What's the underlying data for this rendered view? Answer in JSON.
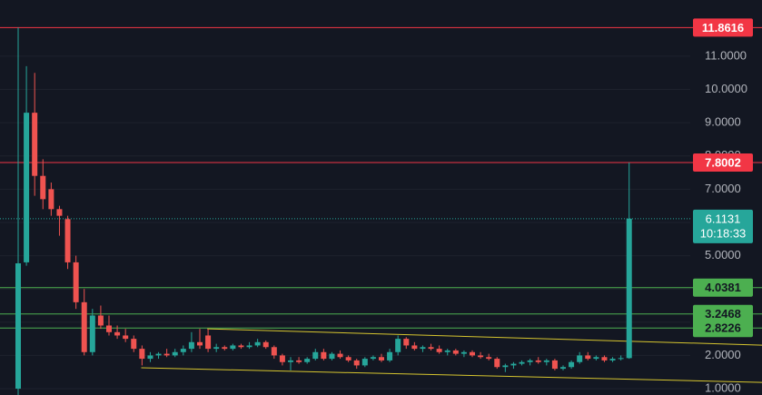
{
  "chart_data": {
    "type": "candlestick",
    "up_color": "#26a69a",
    "down_color": "#ef5350",
    "xlim": [
      -2.2,
      81.4
    ],
    "ylim": [
      0.81,
      12.69
    ],
    "yticks": [
      {
        "value": 1,
        "label": "1.0000"
      },
      {
        "value": 2,
        "label": "2.0000"
      },
      {
        "value": 3,
        "label": "3.0000"
      },
      {
        "value": 4,
        "label": "4.0000"
      },
      {
        "value": 5,
        "label": "5.0000"
      },
      {
        "value": 6,
        "label": "6.0000"
      },
      {
        "value": 7,
        "label": "7.0000"
      },
      {
        "value": 8,
        "label": "8.0000"
      },
      {
        "value": 9,
        "label": "9.0000"
      },
      {
        "value": 10,
        "label": "10.0000"
      },
      {
        "value": 11,
        "label": "11.0000"
      }
    ],
    "grid": true,
    "candles": [
      [
        1.0,
        11.8616,
        0.8,
        4.77
      ],
      [
        4.8,
        10.7,
        4.7,
        9.3
      ],
      [
        9.3,
        10.5,
        6.8,
        7.4
      ],
      [
        7.4,
        7.9,
        6.4,
        6.7
      ],
      [
        7.0,
        7.2,
        6.2,
        6.4
      ],
      [
        6.4,
        6.5,
        5.6,
        6.2
      ],
      [
        6.1,
        6.2,
        4.6,
        4.8
      ],
      [
        4.8,
        5.0,
        3.4,
        3.6
      ],
      [
        3.6,
        4.0,
        2.0,
        2.1
      ],
      [
        2.1,
        3.4,
        2.0,
        3.2
      ],
      [
        3.2,
        3.5,
        2.8,
        2.9
      ],
      [
        2.9,
        3.2,
        2.6,
        2.7
      ],
      [
        2.7,
        2.9,
        2.5,
        2.6
      ],
      [
        2.6,
        2.8,
        2.4,
        2.5
      ],
      [
        2.5,
        2.6,
        2.1,
        2.2
      ],
      [
        2.2,
        2.3,
        1.7,
        1.9
      ],
      [
        1.9,
        2.1,
        1.8,
        2.0
      ],
      [
        2.0,
        2.1,
        1.9,
        2.05
      ],
      [
        2.05,
        2.2,
        1.95,
        2.0
      ],
      [
        2.0,
        2.2,
        1.95,
        2.1
      ],
      [
        2.1,
        2.3,
        2.0,
        2.2
      ],
      [
        2.2,
        2.7,
        2.1,
        2.4
      ],
      [
        2.4,
        2.8,
        2.2,
        2.3
      ],
      [
        2.6,
        2.8,
        2.1,
        2.2
      ],
      [
        2.2,
        2.35,
        2.1,
        2.25
      ],
      [
        2.25,
        2.3,
        2.15,
        2.2
      ],
      [
        2.2,
        2.35,
        2.15,
        2.3
      ],
      [
        2.3,
        2.35,
        2.2,
        2.25
      ],
      [
        2.25,
        2.4,
        2.2,
        2.3
      ],
      [
        2.3,
        2.5,
        2.25,
        2.4
      ],
      [
        2.4,
        2.45,
        2.2,
        2.25
      ],
      [
        2.25,
        2.3,
        1.9,
        2.0
      ],
      [
        2.0,
        2.05,
        1.7,
        1.8
      ],
      [
        1.8,
        1.95,
        1.55,
        1.85
      ],
      [
        1.85,
        1.95,
        1.75,
        1.8
      ],
      [
        1.8,
        1.95,
        1.75,
        1.9
      ],
      [
        1.9,
        2.2,
        1.85,
        2.1
      ],
      [
        2.1,
        2.2,
        1.85,
        1.9
      ],
      [
        1.9,
        2.1,
        1.85,
        2.05
      ],
      [
        2.05,
        2.15,
        1.9,
        1.95
      ],
      [
        1.95,
        2.0,
        1.8,
        1.85
      ],
      [
        1.85,
        1.9,
        1.6,
        1.7
      ],
      [
        1.7,
        1.95,
        1.65,
        1.9
      ],
      [
        1.9,
        2.0,
        1.85,
        1.95
      ],
      [
        1.95,
        2.05,
        1.8,
        1.85
      ],
      [
        1.85,
        2.2,
        1.8,
        2.1
      ],
      [
        2.1,
        2.6,
        2.0,
        2.5
      ],
      [
        2.5,
        2.55,
        2.2,
        2.3
      ],
      [
        2.3,
        2.4,
        2.15,
        2.2
      ],
      [
        2.2,
        2.3,
        2.1,
        2.25
      ],
      [
        2.25,
        2.35,
        2.15,
        2.2
      ],
      [
        2.2,
        2.3,
        2.05,
        2.1
      ],
      [
        2.1,
        2.2,
        2.0,
        2.15
      ],
      [
        2.15,
        2.2,
        2.0,
        2.05
      ],
      [
        2.05,
        2.15,
        1.95,
        2.1
      ],
      [
        2.1,
        2.15,
        1.95,
        2.0
      ],
      [
        2.0,
        2.1,
        1.9,
        1.95
      ],
      [
        1.95,
        2.05,
        1.85,
        1.9
      ],
      [
        1.9,
        1.95,
        1.6,
        1.65
      ],
      [
        1.65,
        1.75,
        1.5,
        1.7
      ],
      [
        1.7,
        1.8,
        1.6,
        1.75
      ],
      [
        1.75,
        1.85,
        1.7,
        1.8
      ],
      [
        1.8,
        1.9,
        1.7,
        1.85
      ],
      [
        1.85,
        1.95,
        1.75,
        1.8
      ],
      [
        1.8,
        1.9,
        1.7,
        1.85
      ],
      [
        1.85,
        1.9,
        1.55,
        1.6
      ],
      [
        1.6,
        1.7,
        1.55,
        1.65
      ],
      [
        1.65,
        1.85,
        1.6,
        1.8
      ],
      [
        1.8,
        2.1,
        1.75,
        2.0
      ],
      [
        2.0,
        2.1,
        1.85,
        1.9
      ],
      [
        1.9,
        2.0,
        1.85,
        1.95
      ],
      [
        1.95,
        2.0,
        1.8,
        1.85
      ],
      [
        1.85,
        1.95,
        1.8,
        1.9
      ],
      [
        1.9,
        2.0,
        1.85,
        1.92
      ],
      [
        1.92,
        7.8002,
        1.9,
        6.1131
      ]
    ],
    "levels": [
      {
        "value": 11.8616,
        "color": "#f23645"
      },
      {
        "value": 7.8002,
        "color": "#f23645"
      },
      {
        "value": 4.0381,
        "color": "#4caf50"
      },
      {
        "value": 3.2468,
        "color": "#4caf50"
      },
      {
        "value": 2.8226,
        "color": "#4caf50"
      }
    ],
    "trendlines": [
      {
        "color": "#d6c52f",
        "points": [
          [
            22.9,
            2.8
          ],
          [
            90.1,
            2.31
          ]
        ]
      },
      {
        "color": "#d6c52f",
        "points": [
          [
            14.9,
            1.63
          ],
          [
            90.1,
            1.19
          ]
        ]
      }
    ],
    "current_price": {
      "value": 6.1131,
      "countdown": "10:18:33",
      "color": "#26a69a"
    }
  }
}
